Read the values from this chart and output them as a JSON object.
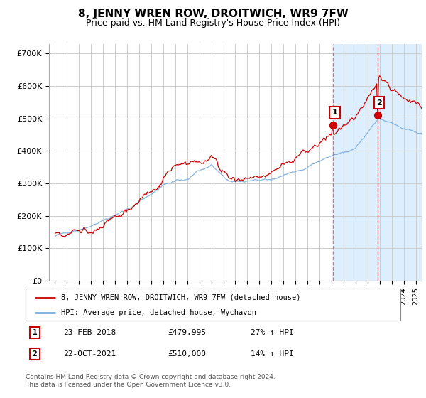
{
  "title": "8, JENNY WREN ROW, DROITWICH, WR9 7FW",
  "subtitle": "Price paid vs. HM Land Registry's House Price Index (HPI)",
  "title_fontsize": 11,
  "subtitle_fontsize": 9,
  "ylabel_ticks": [
    "£0",
    "£100K",
    "£200K",
    "£300K",
    "£400K",
    "£500K",
    "£600K",
    "£700K"
  ],
  "ytick_values": [
    0,
    100000,
    200000,
    300000,
    400000,
    500000,
    600000,
    700000
  ],
  "ylim": [
    0,
    730000
  ],
  "xlim_start": 1994.5,
  "xlim_end": 2025.5,
  "red_line_color": "#cc0000",
  "blue_line_color": "#7aaddc",
  "highlight_bg_color": "#ddeeff",
  "sale1_x": 2018.12,
  "sale1_y": 479995,
  "sale2_x": 2021.81,
  "sale2_y": 510000,
  "sale1_label": "1",
  "sale2_label": "2",
  "vline_color": "#cc4444",
  "legend_red_label": "8, JENNY WREN ROW, DROITWICH, WR9 7FW (detached house)",
  "legend_blue_label": "HPI: Average price, detached house, Wychavon",
  "table_row1": [
    "1",
    "23-FEB-2018",
    "£479,995",
    "27% ↑ HPI"
  ],
  "table_row2": [
    "2",
    "22-OCT-2021",
    "£510,000",
    "14% ↑ HPI"
  ],
  "footer": "Contains HM Land Registry data © Crown copyright and database right 2024.\nThis data is licensed under the Open Government Licence v3.0.",
  "grid_color": "#cccccc",
  "background_color": "#ffffff"
}
